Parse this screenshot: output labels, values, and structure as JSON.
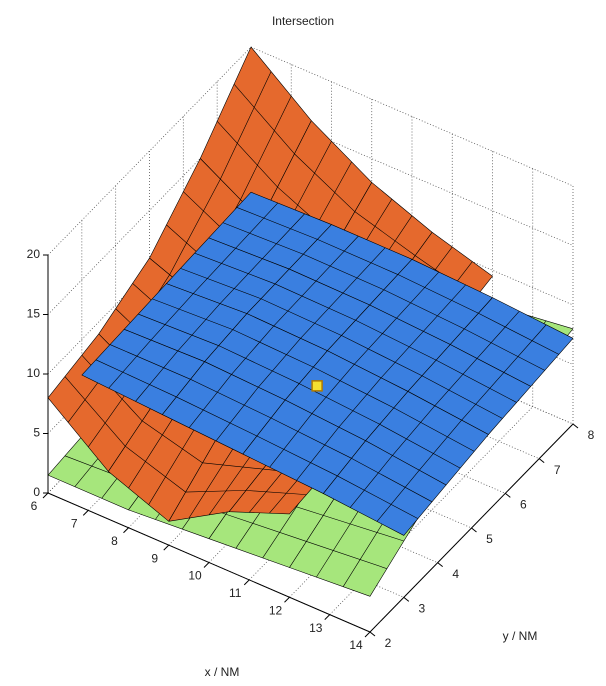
{
  "chart_data": {
    "type": "surface3d",
    "title": "Intersection",
    "xlabel": "x / NM",
    "ylabel": "y / NM",
    "xlim": [
      6,
      14
    ],
    "ylim": [
      2,
      8
    ],
    "zlim": [
      0,
      20
    ],
    "xticks": [
      6,
      7,
      8,
      9,
      10,
      11,
      12,
      13,
      14
    ],
    "yticks": [
      2,
      3,
      4,
      5,
      6,
      7,
      8
    ],
    "zticks": [
      0,
      5,
      10,
      15,
      20
    ],
    "grid": true,
    "surfaces": [
      {
        "color": "#a6e67c",
        "x": [
          6,
          8,
          10,
          12,
          14
        ],
        "y": [
          2,
          3.5,
          5,
          6.5,
          8
        ],
        "z": [
          [
            1.5,
            1.5,
            2,
            2.5,
            3
          ],
          [
            2,
            3,
            3.8,
            4.7,
            5.6
          ],
          [
            2.8,
            3.7,
            4.6,
            5.5,
            6.4
          ],
          [
            3.6,
            4.5,
            5.4,
            6.3,
            7.2
          ],
          [
            4.4,
            5.3,
            6.2,
            7.1,
            8
          ]
        ]
      },
      {
        "color": "#e5692d",
        "x": [
          6,
          7.5,
          9,
          10.5,
          12
        ],
        "y": [
          2,
          3.5,
          5,
          6.5,
          8
        ],
        "z": [
          [
            8,
            4,
            2,
            5,
            7
          ],
          [
            9,
            6,
            5,
            6,
            7.5
          ],
          [
            11,
            9,
            8,
            8,
            8
          ],
          [
            15,
            12,
            10,
            9.5,
            8.5
          ],
          [
            20,
            16,
            13,
            11,
            9.5
          ]
        ]
      },
      {
        "color": "#3a7fe0",
        "x": [
          6,
          8,
          10,
          12,
          14
        ],
        "y": [
          3,
          4.25,
          5.5,
          6.75,
          8
        ],
        "z": [
          [
            7,
            6.6,
            6.2,
            5.8,
            5.2
          ],
          [
            7.2,
            7.4,
            7.1,
            6.6,
            5.8
          ],
          [
            7.4,
            7.8,
            7.6,
            7.1,
            6.4
          ],
          [
            7.6,
            7.9,
            7.8,
            7.4,
            6.8
          ],
          [
            7.8,
            8,
            8,
            7.7,
            7.2
          ]
        ]
      }
    ],
    "marker": {
      "x": 10.5,
      "y": 4.6,
      "z": 8,
      "color": "#f5e030"
    }
  }
}
